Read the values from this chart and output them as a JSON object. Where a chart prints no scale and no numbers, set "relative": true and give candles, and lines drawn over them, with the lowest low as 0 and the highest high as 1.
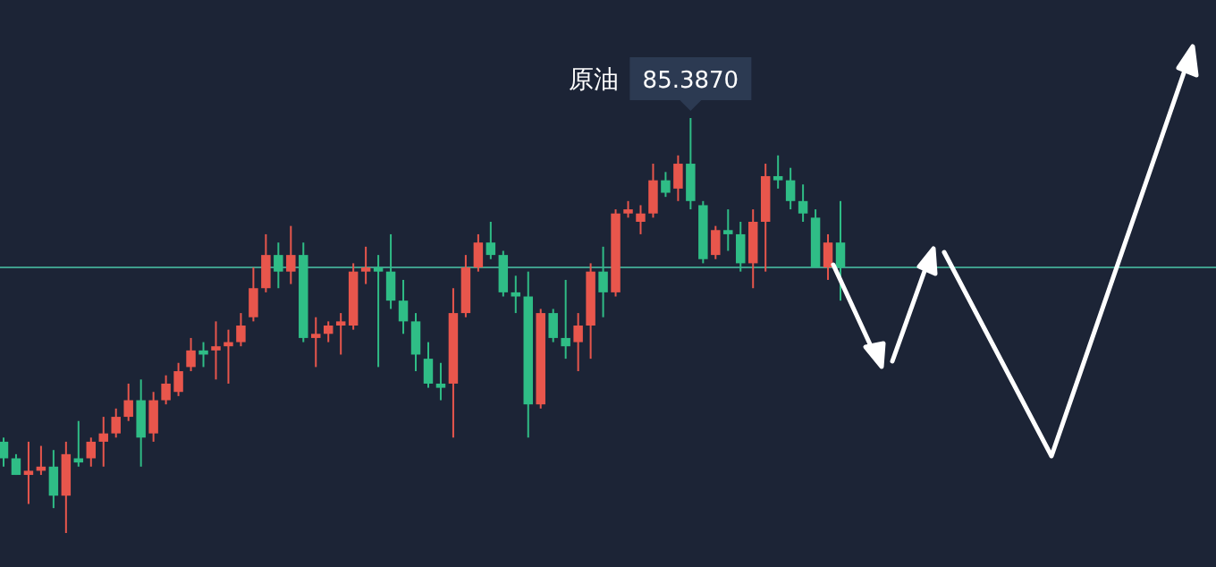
{
  "chart_data": {
    "type": "candlestick",
    "relative": true,
    "categories": [
      null,
      null,
      null,
      null,
      null,
      null,
      null,
      null,
      null,
      null,
      null,
      null,
      null,
      null,
      null,
      null,
      null,
      null,
      null,
      null,
      null,
      null,
      null,
      null,
      null,
      null,
      null,
      null,
      null,
      null,
      null,
      null,
      null,
      null,
      null,
      null,
      null,
      null,
      null,
      null,
      null,
      null,
      null,
      null,
      null,
      null,
      null,
      null,
      null,
      null,
      null,
      null,
      null,
      null,
      null,
      null,
      null,
      null,
      null,
      null,
      null,
      null,
      null,
      null,
      null,
      null,
      null,
      null
    ],
    "ohlc": [
      [
        0.22,
        0.23,
        0.16,
        0.18
      ],
      [
        0.18,
        0.19,
        0.14,
        0.14
      ],
      [
        0.14,
        0.22,
        0.07,
        0.15
      ],
      [
        0.15,
        0.21,
        0.14,
        0.16
      ],
      [
        0.16,
        0.2,
        0.06,
        0.09
      ],
      [
        0.09,
        0.22,
        0,
        0.19
      ],
      [
        0.18,
        0.27,
        0.16,
        0.17
      ],
      [
        0.18,
        0.23,
        0.16,
        0.22
      ],
      [
        0.22,
        0.28,
        0.16,
        0.24
      ],
      [
        0.24,
        0.3,
        0.23,
        0.28
      ],
      [
        0.28,
        0.36,
        0.27,
        0.32
      ],
      [
        0.32,
        0.37,
        0.16,
        0.23
      ],
      [
        0.24,
        0.34,
        0.22,
        0.32
      ],
      [
        0.32,
        0.38,
        0.31,
        0.36
      ],
      [
        0.34,
        0.41,
        0.33,
        0.39
      ],
      [
        0.4,
        0.47,
        0.39,
        0.44
      ],
      [
        0.44,
        0.46,
        0.4,
        0.43
      ],
      [
        0.44,
        0.51,
        0.37,
        0.45
      ],
      [
        0.45,
        0.49,
        0.36,
        0.46
      ],
      [
        0.46,
        0.53,
        0.45,
        0.5
      ],
      [
        0.52,
        0.64,
        0.51,
        0.59
      ],
      [
        0.59,
        0.72,
        0.58,
        0.67
      ],
      [
        0.67,
        0.7,
        0.59,
        0.63
      ],
      [
        0.63,
        0.74,
        0.6,
        0.67
      ],
      [
        0.67,
        0.7,
        0.46,
        0.47
      ],
      [
        0.47,
        0.52,
        0.4,
        0.48
      ],
      [
        0.48,
        0.51,
        0.46,
        0.5
      ],
      [
        0.5,
        0.53,
        0.43,
        0.51
      ],
      [
        0.5,
        0.65,
        0.49,
        0.63
      ],
      [
        0.63,
        0.69,
        0.6,
        0.64
      ],
      [
        0.64,
        0.67,
        0.4,
        0.63
      ],
      [
        0.63,
        0.72,
        0.54,
        0.56
      ],
      [
        0.56,
        0.61,
        0.48,
        0.51
      ],
      [
        0.51,
        0.53,
        0.39,
        0.43
      ],
      [
        0.42,
        0.46,
        0.35,
        0.36
      ],
      [
        0.36,
        0.41,
        0.32,
        0.35
      ],
      [
        0.36,
        0.59,
        0.23,
        0.53
      ],
      [
        0.53,
        0.67,
        0.52,
        0.64
      ],
      [
        0.64,
        0.72,
        0.63,
        0.7
      ],
      [
        0.7,
        0.75,
        0.66,
        0.67
      ],
      [
        0.67,
        0.68,
        0.57,
        0.58
      ],
      [
        0.58,
        0.62,
        0.53,
        0.57
      ],
      [
        0.57,
        0.63,
        0.23,
        0.31
      ],
      [
        0.31,
        0.54,
        0.3,
        0.53
      ],
      [
        0.53,
        0.54,
        0.46,
        0.47
      ],
      [
        0.47,
        0.61,
        0.42,
        0.45
      ],
      [
        0.46,
        0.53,
        0.39,
        0.5
      ],
      [
        0.5,
        0.65,
        0.42,
        0.63
      ],
      [
        0.63,
        0.69,
        0.52,
        0.58
      ],
      [
        0.58,
        0.78,
        0.57,
        0.77
      ],
      [
        0.77,
        0.8,
        0.76,
        0.78
      ],
      [
        0.75,
        0.79,
        0.72,
        0.77
      ],
      [
        0.77,
        0.89,
        0.76,
        0.85
      ],
      [
        0.85,
        0.87,
        0.81,
        0.82
      ],
      [
        0.83,
        0.91,
        0.8,
        0.89
      ],
      [
        0.89,
        1,
        0.78,
        0.8
      ],
      [
        0.79,
        0.8,
        0.65,
        0.66
      ],
      [
        0.67,
        0.74,
        0.66,
        0.73
      ],
      [
        0.73,
        0.78,
        0.68,
        0.72
      ],
      [
        0.72,
        0.75,
        0.63,
        0.65
      ],
      [
        0.65,
        0.78,
        0.59,
        0.75
      ],
      [
        0.75,
        0.89,
        0.63,
        0.86
      ],
      [
        0.86,
        0.91,
        0.83,
        0.85
      ],
      [
        0.85,
        0.88,
        0.78,
        0.8
      ],
      [
        0.8,
        0.84,
        0.75,
        0.77
      ],
      [
        0.76,
        0.78,
        0.64,
        0.64
      ],
      [
        0.64,
        0.72,
        0.61,
        0.7
      ],
      [
        0.7,
        0.8,
        0.56,
        0.64
      ]
    ],
    "ref_lines": [
      {
        "axis": "y",
        "value": 0.64,
        "color": "#3f9e8c"
      }
    ],
    "annotations": [
      "原油",
      "85.3870"
    ]
  }
}
